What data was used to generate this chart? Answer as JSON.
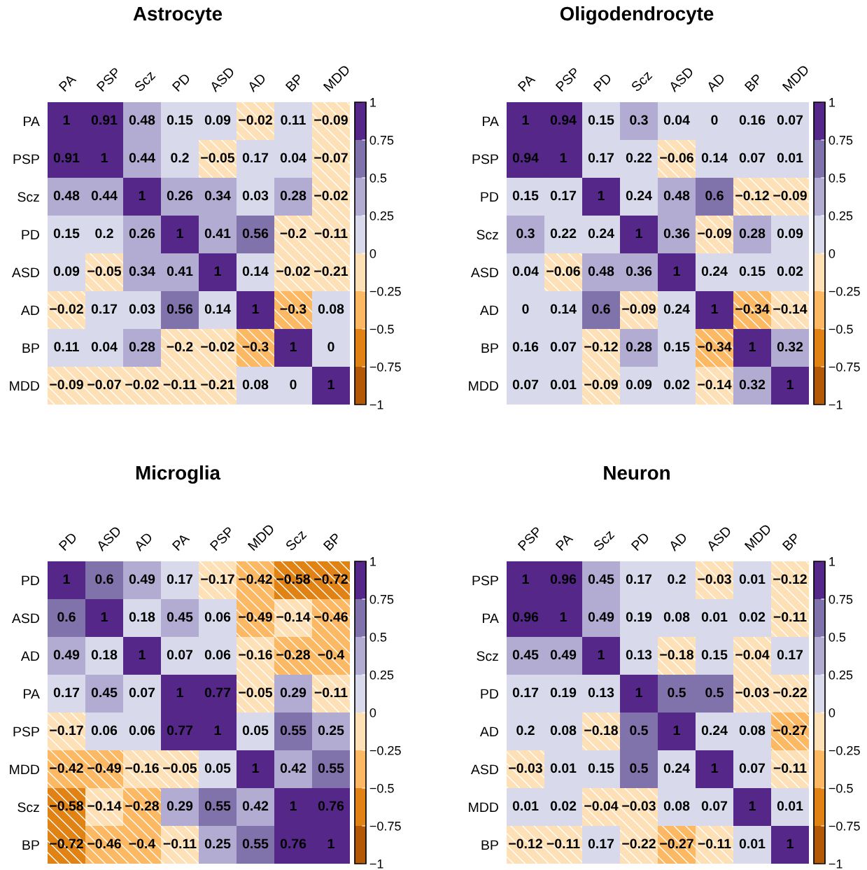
{
  "chart_data": [
    {
      "type": "heatmap",
      "title": "Astrocyte",
      "categories": [
        "PA",
        "PSP",
        "Scz",
        "PD",
        "ASD",
        "AD",
        "BP",
        "MDD"
      ],
      "y_categories": [
        "PA",
        "PSP",
        "Scz",
        "PD",
        "ASD",
        "AD",
        "BP",
        "MDD"
      ],
      "cells": [
        [
          1,
          0.91,
          0.48,
          0.15,
          0.09,
          -0.02,
          0.11,
          -0.09
        ],
        [
          0.91,
          1,
          0.44,
          0.2,
          -0.05,
          0.17,
          0.04,
          -0.07
        ],
        [
          0.48,
          0.44,
          1,
          0.26,
          0.34,
          0.03,
          0.28,
          -0.02
        ],
        [
          0.15,
          0.2,
          0.26,
          1,
          0.41,
          0.56,
          -0.2,
          -0.11
        ],
        [
          0.09,
          -0.05,
          0.34,
          0.41,
          1,
          0.14,
          -0.02,
          -0.21
        ],
        [
          -0.02,
          0.17,
          0.03,
          0.56,
          0.14,
          1,
          -0.3,
          0.08
        ],
        [
          0.11,
          0.04,
          0.28,
          -0.2,
          -0.02,
          -0.3,
          1,
          0
        ],
        [
          -0.09,
          -0.07,
          -0.02,
          -0.11,
          -0.21,
          0.08,
          0,
          1
        ]
      ],
      "cell_labels": [
        [
          "1",
          "0.91",
          "0.48",
          "0.15",
          "0.09",
          "−0.02",
          "0.11",
          "−0.09"
        ],
        [
          "0.91",
          "1",
          "0.44",
          "0.2",
          "−0.05",
          "0.17",
          "0.04",
          "−0.07"
        ],
        [
          "0.48",
          "0.44",
          "1",
          "0.26",
          "0.34",
          "0.03",
          "0.28",
          "−0.02"
        ],
        [
          "0.15",
          "0.2",
          "0.26",
          "1",
          "0.41",
          "0.56",
          "−0.2",
          "−0.11"
        ],
        [
          "0.09",
          "−0.05",
          "0.34",
          "0.41",
          "1",
          "0.14",
          "−0.02",
          "−0.21"
        ],
        [
          "−0.02",
          "0.17",
          "0.03",
          "0.56",
          "0.14",
          "1",
          "−0.3",
          "0.08"
        ],
        [
          "0.11",
          "0.04",
          "0.28",
          "−0.2",
          "−0.02",
          "−0.3",
          "1",
          "0"
        ],
        [
          "−0.09",
          "−0.07",
          "−0.02",
          "−0.11",
          "−0.21",
          "0.08",
          "0",
          "1"
        ]
      ],
      "clim": [
        -1,
        1
      ],
      "cticks": [
        {
          "value": -1,
          "label": "−1"
        },
        {
          "value": -0.75,
          "label": "−0.75"
        },
        {
          "value": -0.5,
          "label": "−0.5"
        },
        {
          "value": -0.25,
          "label": "−0.25"
        },
        0,
        0.25,
        0.5,
        0.75,
        1
      ],
      "colors": [
        "#b35806",
        "#e08214",
        "#fdb863",
        "#fee0b6",
        "#d8daeb",
        "#b2abd2",
        "#8073ac",
        "#542788"
      ]
    },
    {
      "type": "heatmap",
      "title": "Oligodendrocyte",
      "categories": [
        "PA",
        "PSP",
        "PD",
        "Scz",
        "ASD",
        "AD",
        "BP",
        "MDD"
      ],
      "y_categories": [
        "PA",
        "PSP",
        "PD",
        "Scz",
        "ASD",
        "AD",
        "BP",
        "MDD"
      ],
      "cells": [
        [
          1,
          0.94,
          0.15,
          0.3,
          0.04,
          0,
          0.16,
          0.07
        ],
        [
          0.94,
          1,
          0.17,
          0.22,
          -0.06,
          0.14,
          0.07,
          0.01
        ],
        [
          0.15,
          0.17,
          1,
          0.24,
          0.48,
          0.6,
          -0.12,
          -0.09
        ],
        [
          0.3,
          0.22,
          0.24,
          1,
          0.36,
          -0.09,
          0.28,
          0.09
        ],
        [
          0.04,
          -0.06,
          0.48,
          0.36,
          1,
          0.24,
          0.15,
          0.02
        ],
        [
          0,
          0.14,
          0.6,
          -0.09,
          0.24,
          1,
          -0.34,
          -0.14
        ],
        [
          0.16,
          0.07,
          -0.12,
          0.28,
          0.15,
          -0.34,
          1,
          0.32
        ],
        [
          0.07,
          0.01,
          -0.09,
          0.09,
          0.02,
          -0.14,
          0.32,
          1
        ]
      ],
      "cell_labels": [
        [
          "1",
          "0.94",
          "0.15",
          "0.3",
          "0.04",
          "0",
          "0.16",
          "0.07"
        ],
        [
          "0.94",
          "1",
          "0.17",
          "0.22",
          "−0.06",
          "0.14",
          "0.07",
          "0.01"
        ],
        [
          "0.15",
          "0.17",
          "1",
          "0.24",
          "0.48",
          "0.6",
          "−0.12",
          "−0.09"
        ],
        [
          "0.3",
          "0.22",
          "0.24",
          "1",
          "0.36",
          "−0.09",
          "0.28",
          "0.09"
        ],
        [
          "0.04",
          "−0.06",
          "0.48",
          "0.36",
          "1",
          "0.24",
          "0.15",
          "0.02"
        ],
        [
          "0",
          "0.14",
          "0.6",
          "−0.09",
          "0.24",
          "1",
          "−0.34",
          "−0.14"
        ],
        [
          "0.16",
          "0.07",
          "−0.12",
          "0.28",
          "0.15",
          "−0.34",
          "1",
          "0.32"
        ],
        [
          "0.07",
          "0.01",
          "−0.09",
          "0.09",
          "0.02",
          "−0.14",
          "0.32",
          "1"
        ]
      ],
      "clim": [
        -1,
        1
      ],
      "cticks": [
        {
          "value": -1,
          "label": "−1"
        },
        {
          "value": -0.75,
          "label": "−0.75"
        },
        {
          "value": -0.5,
          "label": "−0.5"
        },
        {
          "value": -0.25,
          "label": "−0.25"
        },
        0,
        0.25,
        0.5,
        0.75,
        1
      ],
      "colors": [
        "#b35806",
        "#e08214",
        "#fdb863",
        "#fee0b6",
        "#d8daeb",
        "#b2abd2",
        "#8073ac",
        "#542788"
      ]
    },
    {
      "type": "heatmap",
      "title": "Microglia",
      "categories": [
        "PD",
        "ASD",
        "AD",
        "PA",
        "PSP",
        "MDD",
        "Scz",
        "BP"
      ],
      "y_categories": [
        "PD",
        "ASD",
        "AD",
        "PA",
        "PSP",
        "MDD",
        "Scz",
        "BP"
      ],
      "cells": [
        [
          1,
          0.6,
          0.49,
          0.17,
          -0.17,
          -0.42,
          -0.58,
          -0.72
        ],
        [
          0.6,
          1,
          0.18,
          0.45,
          0.06,
          -0.49,
          -0.14,
          -0.46
        ],
        [
          0.49,
          0.18,
          1,
          0.07,
          0.06,
          -0.16,
          -0.28,
          -0.4
        ],
        [
          0.17,
          0.45,
          0.07,
          1,
          0.77,
          -0.05,
          0.29,
          -0.11
        ],
        [
          -0.17,
          0.06,
          0.06,
          0.77,
          1,
          0.05,
          0.55,
          0.25
        ],
        [
          -0.42,
          -0.49,
          -0.16,
          -0.05,
          0.05,
          1,
          0.42,
          0.55
        ],
        [
          -0.58,
          -0.14,
          -0.28,
          0.29,
          0.55,
          0.42,
          1,
          0.76
        ],
        [
          -0.72,
          -0.46,
          -0.4,
          -0.11,
          0.25,
          0.55,
          0.76,
          1
        ]
      ],
      "cell_labels": [
        [
          "1",
          "0.6",
          "0.49",
          "0.17",
          "−0.17",
          "−0.42",
          "−0.58",
          "−0.72"
        ],
        [
          "0.6",
          "1",
          "0.18",
          "0.45",
          "0.06",
          "−0.49",
          "−0.14",
          "−0.46"
        ],
        [
          "0.49",
          "0.18",
          "1",
          "0.07",
          "0.06",
          "−0.16",
          "−0.28",
          "−0.4"
        ],
        [
          "0.17",
          "0.45",
          "0.07",
          "1",
          "0.77",
          "−0.05",
          "0.29",
          "−0.11"
        ],
        [
          "−0.17",
          "0.06",
          "0.06",
          "0.77",
          "1",
          "0.05",
          "0.55",
          "0.25"
        ],
        [
          "−0.42",
          "−0.49",
          "−0.16",
          "−0.05",
          "0.05",
          "1",
          "0.42",
          "0.55"
        ],
        [
          "−0.58",
          "−0.14",
          "−0.28",
          "0.29",
          "0.55",
          "0.42",
          "1",
          "0.76"
        ],
        [
          "−0.72",
          "−0.46",
          "−0.4",
          "−0.11",
          "0.25",
          "0.55",
          "0.76",
          "1"
        ]
      ],
      "clim": [
        -1,
        1
      ],
      "cticks": [
        {
          "value": -1,
          "label": "−1"
        },
        {
          "value": -0.75,
          "label": "−0.75"
        },
        {
          "value": -0.5,
          "label": "−0.5"
        },
        {
          "value": -0.25,
          "label": "−0.25"
        },
        0,
        0.25,
        0.5,
        0.75,
        1
      ],
      "colors": [
        "#b35806",
        "#e08214",
        "#fdb863",
        "#fee0b6",
        "#d8daeb",
        "#b2abd2",
        "#8073ac",
        "#542788"
      ]
    },
    {
      "type": "heatmap",
      "title": "Neuron",
      "categories": [
        "PSP",
        "PA",
        "Scz",
        "PD",
        "AD",
        "ASD",
        "MDD",
        "BP"
      ],
      "y_categories": [
        "PSP",
        "PA",
        "Scz",
        "PD",
        "AD",
        "ASD",
        "MDD",
        "BP"
      ],
      "cells": [
        [
          1,
          0.96,
          0.45,
          0.17,
          0.2,
          -0.03,
          0.01,
          -0.12
        ],
        [
          0.96,
          1,
          0.49,
          0.19,
          0.08,
          0.01,
          0.02,
          -0.11
        ],
        [
          0.45,
          0.49,
          1,
          0.13,
          -0.18,
          0.15,
          -0.04,
          0.17
        ],
        [
          0.17,
          0.19,
          0.13,
          1,
          0.5,
          0.5,
          -0.03,
          -0.22
        ],
        [
          0.2,
          0.08,
          -0.18,
          0.5,
          1,
          0.24,
          0.08,
          -0.27
        ],
        [
          -0.03,
          0.01,
          0.15,
          0.5,
          0.24,
          1,
          0.07,
          -0.11
        ],
        [
          0.01,
          0.02,
          -0.04,
          -0.03,
          0.08,
          0.07,
          1,
          0.01
        ],
        [
          -0.12,
          -0.11,
          0.17,
          -0.22,
          -0.27,
          -0.11,
          0.01,
          1
        ]
      ],
      "cell_labels": [
        [
          "1",
          "0.96",
          "0.45",
          "0.17",
          "0.2",
          "−0.03",
          "0.01",
          "−0.12"
        ],
        [
          "0.96",
          "1",
          "0.49",
          "0.19",
          "0.08",
          "0.01",
          "0.02",
          "−0.11"
        ],
        [
          "0.45",
          "0.49",
          "1",
          "0.13",
          "−0.18",
          "0.15",
          "−0.04",
          "0.17"
        ],
        [
          "0.17",
          "0.19",
          "0.13",
          "1",
          "0.5",
          "0.5",
          "−0.03",
          "−0.22"
        ],
        [
          "0.2",
          "0.08",
          "−0.18",
          "0.5",
          "1",
          "0.24",
          "0.08",
          "−0.27"
        ],
        [
          "−0.03",
          "0.01",
          "0.15",
          "0.5",
          "0.24",
          "1",
          "0.07",
          "−0.11"
        ],
        [
          "0.01",
          "0.02",
          "−0.04",
          "−0.03",
          "0.08",
          "0.07",
          "1",
          "0.01"
        ],
        [
          "−0.12",
          "−0.11",
          "0.17",
          "−0.22",
          "−0.27",
          "−0.11",
          "0.01",
          "1"
        ]
      ],
      "clim": [
        -1,
        1
      ],
      "cticks": [
        {
          "value": -1,
          "label": "−1"
        },
        {
          "value": -0.75,
          "label": "−0.75"
        },
        {
          "value": -0.5,
          "label": "−0.5"
        },
        {
          "value": -0.25,
          "label": "−0.25"
        },
        0,
        0.25,
        0.5,
        0.75,
        1
      ],
      "colors": [
        "#b35806",
        "#e08214",
        "#fdb863",
        "#fee0b6",
        "#d8daeb",
        "#b2abd2",
        "#8073ac",
        "#542788"
      ]
    }
  ]
}
